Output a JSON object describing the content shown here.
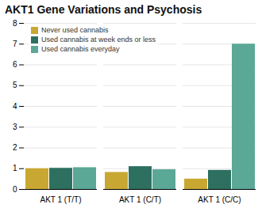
{
  "chart_data": {
    "type": "bar",
    "title": "AKT1 Gene Variations and Psychosis",
    "categories": [
      "AKT 1 (T/T)",
      "AKT 1 (C/T)",
      "AKT 1 (C/C)"
    ],
    "series": [
      {
        "name": "Never used cannabis",
        "color": "#C8A832",
        "values": [
          1.0,
          0.82,
          0.5
        ]
      },
      {
        "name": "Used cannabis at week ends or less",
        "color": "#2E7060",
        "values": [
          1.02,
          1.1,
          0.92
        ]
      },
      {
        "name": "Used cannabis everyday",
        "color": "#5BA896",
        "values": [
          1.05,
          0.95,
          7.0
        ]
      }
    ],
    "ylim": [
      0,
      8
    ],
    "yticks": [
      0,
      1,
      2,
      3,
      4,
      5,
      6,
      7,
      8
    ],
    "grid": true,
    "legend": "upper left"
  }
}
